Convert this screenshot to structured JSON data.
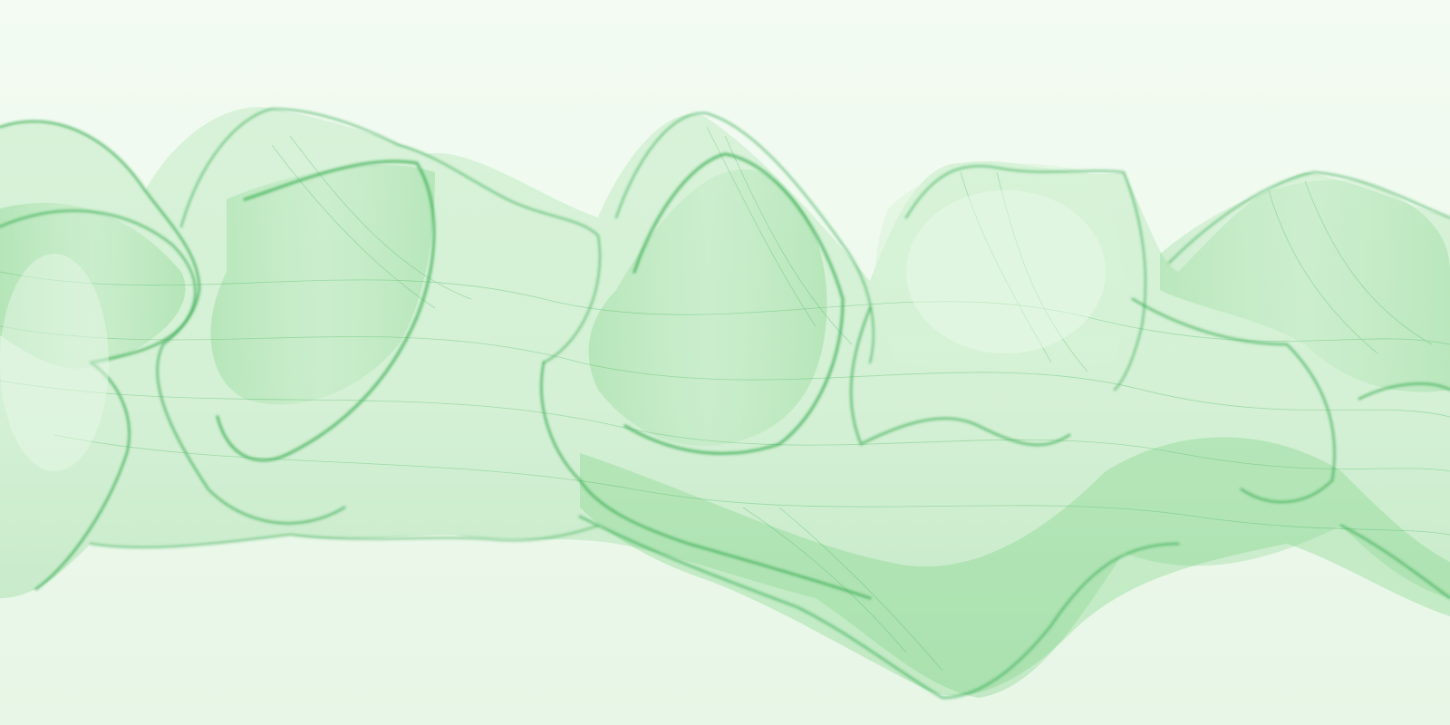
{
  "scene": {
    "subject": "abstract-green-silk-wave",
    "colors": {
      "background_top": "#f3fbf2",
      "background_bottom": "#e7f6e6",
      "ribbon_fill": "#6fcf77",
      "ribbon_stroke": "#2ea84a",
      "ribbon_highlight": "#c9efcc"
    }
  }
}
